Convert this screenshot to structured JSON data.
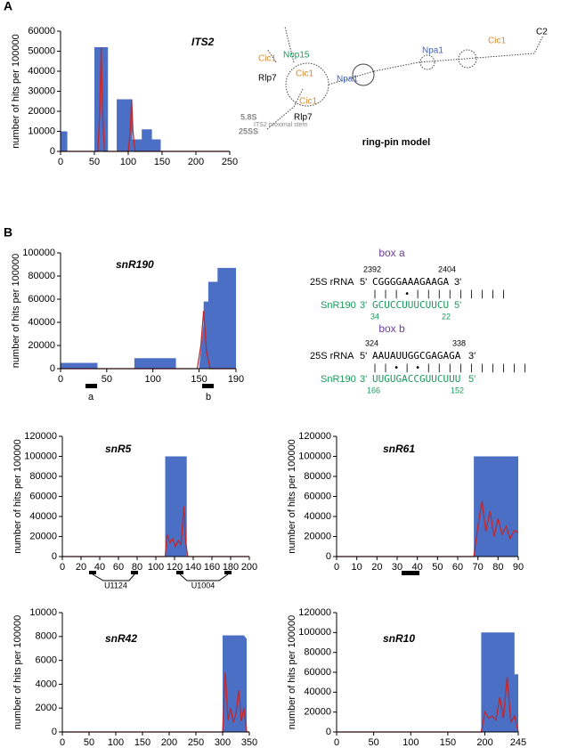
{
  "panels": [
    "A",
    "B"
  ],
  "annotations": [
    "a",
    "b",
    "U1124",
    "U1004"
  ],
  "diagram": {
    "labels": [
      "Nop15",
      "Cic1",
      "Cic1",
      "Npa1",
      "Npa1",
      "Cic1",
      "Rlp7",
      "Cic1",
      "Rlp7",
      "5.8S",
      "25SS",
      "ITS2 proximal stem",
      "C2"
    ],
    "caption": "ring-pin model"
  },
  "box_a": {
    "title": "box a",
    "top_name": "25S rRNA",
    "top_5": "5'",
    "top_seq": "CGGGGAAAGAAGA",
    "top_3": "3'",
    "top_start": "2392",
    "top_end": "2404",
    "pairs": "| | | • | | | | | | | | |",
    "bottom_name": "SnR190",
    "bottom_3": "3'",
    "bottom_seq": "GCUCCUUUCUUCU",
    "bottom_5": "5'",
    "bottom_start": "34",
    "bottom_end": "22"
  },
  "box_b": {
    "title": "box b",
    "top_name": "25S rRNA",
    "top_5": "5'",
    "top_seq": "AAUAUUGGCGAGAGA",
    "top_3": "3'",
    "top_start": "324",
    "top_end": "338",
    "pairs": "| | • | • | | | | | | | | | |",
    "bottom_name": "SnR190",
    "bottom_3": "3'",
    "bottom_seq": "UUGUGACCGUUCUUU",
    "bottom_5": "5'",
    "bottom_start": "166",
    "bottom_end": "152"
  },
  "chart_data": [
    {
      "type": "area",
      "title": "ITS2",
      "ylabel": "number of hits per 100000",
      "xlim": [
        0,
        250
      ],
      "xticks": [
        0,
        50,
        100,
        150,
        200,
        250
      ],
      "ylim": [
        0,
        60000
      ],
      "yticks": [
        0,
        10000,
        20000,
        30000,
        40000,
        50000,
        60000
      ],
      "series": [
        {
          "color": "#4a6fc4",
          "x": [
            0,
            0,
            10,
            10,
            50,
            50,
            70,
            70,
            83,
            83,
            106,
            106,
            120,
            120,
            135,
            135,
            148,
            148,
            250
          ],
          "values": [
            0,
            10000,
            10000,
            0,
            0,
            52000,
            52000,
            0,
            0,
            26000,
            26000,
            6000,
            6000,
            11000,
            11000,
            6000,
            6000,
            0,
            0
          ]
        },
        {
          "color": "#c0282d",
          "x": [
            0,
            55,
            58,
            60,
            62,
            65,
            100,
            103,
            105,
            107,
            110,
            250
          ],
          "values": [
            0,
            0,
            20000,
            52000,
            20000,
            0,
            0,
            10000,
            26000,
            10000,
            0,
            0
          ]
        }
      ]
    },
    {
      "type": "area",
      "title": "snR190",
      "ylabel": "number of hits per 100000",
      "xlim": [
        0,
        190
      ],
      "xticks": [
        0,
        50,
        100,
        150,
        190
      ],
      "ylim": [
        0,
        100000
      ],
      "yticks": [
        0,
        20000,
        40000,
        60000,
        80000,
        100000
      ],
      "series": [
        {
          "color": "#4a6fc4",
          "x": [
            0,
            0,
            40,
            40,
            80,
            80,
            125,
            125,
            150,
            155,
            155,
            160,
            160,
            170,
            170,
            190,
            190
          ],
          "values": [
            0,
            5000,
            5000,
            0,
            0,
            9000,
            9000,
            0,
            0,
            40000,
            58000,
            58000,
            75000,
            75000,
            87000,
            87000,
            0
          ]
        },
        {
          "color": "#c0282d",
          "x": [
            0,
            148,
            152,
            155,
            158,
            162,
            190
          ],
          "values": [
            0,
            0,
            20000,
            50000,
            15000,
            0,
            0
          ]
        }
      ]
    },
    {
      "type": "area",
      "title": "snR5",
      "ylabel": "number of hits per 100000",
      "xlim": [
        0,
        200
      ],
      "xticks": [
        0,
        20,
        40,
        60,
        80,
        100,
        120,
        140,
        160,
        180,
        200
      ],
      "ylim": [
        0,
        120000
      ],
      "yticks": [
        0,
        20000,
        40000,
        60000,
        80000,
        100000,
        120000
      ],
      "series": [
        {
          "color": "#4a6fc4",
          "x": [
            0,
            110,
            110,
            133,
            133,
            200
          ],
          "values": [
            0,
            0,
            100000,
            100000,
            0,
            0
          ]
        },
        {
          "color": "#c0282d",
          "x": [
            0,
            110,
            112,
            115,
            118,
            121,
            124,
            127,
            130,
            132,
            134,
            200
          ],
          "values": [
            0,
            0,
            22000,
            14000,
            18000,
            10000,
            16000,
            12000,
            50000,
            15000,
            0,
            0
          ]
        }
      ]
    },
    {
      "type": "area",
      "title": "snR61",
      "ylabel": "number of hits per 100000",
      "xlim": [
        0,
        90
      ],
      "xticks": [
        0,
        10,
        20,
        30,
        40,
        50,
        60,
        70,
        80,
        90
      ],
      "ylim": [
        0,
        120000
      ],
      "yticks": [
        0,
        20000,
        40000,
        60000,
        80000,
        100000,
        120000
      ],
      "series": [
        {
          "color": "#4a6fc4",
          "x": [
            0,
            68,
            68,
            90,
            90
          ],
          "values": [
            0,
            0,
            100000,
            100000,
            0
          ]
        },
        {
          "color": "#c0282d",
          "x": [
            0,
            68,
            70,
            72,
            74,
            76,
            78,
            80,
            82,
            84,
            86,
            88,
            90
          ],
          "values": [
            0,
            0,
            30000,
            55000,
            25000,
            45000,
            20000,
            38000,
            22000,
            30000,
            18000,
            26000,
            24000
          ]
        }
      ]
    },
    {
      "type": "area",
      "title": "snR42",
      "ylabel": "number of hits per 100000",
      "xlim": [
        0,
        350
      ],
      "xticks": [
        0,
        50,
        100,
        150,
        200,
        250,
        300,
        350
      ],
      "ylim": [
        0,
        10000
      ],
      "yticks": [
        0,
        2000,
        4000,
        6000,
        8000,
        10000
      ],
      "series": [
        {
          "color": "#4a6fc4",
          "x": [
            0,
            300,
            300,
            340,
            345,
            345,
            350
          ],
          "values": [
            0,
            0,
            8100,
            8100,
            7800,
            0,
            0
          ]
        },
        {
          "color": "#c0282d",
          "x": [
            0,
            300,
            305,
            310,
            315,
            320,
            325,
            330,
            335,
            340,
            345,
            350
          ],
          "values": [
            0,
            0,
            5000,
            1000,
            2000,
            800,
            1500,
            3500,
            900,
            2000,
            0,
            0
          ]
        }
      ]
    },
    {
      "type": "area",
      "title": "snR10",
      "ylabel": "number of hits per 100000",
      "xlim": [
        0,
        245
      ],
      "xticks": [
        0,
        50,
        100,
        150,
        200,
        245
      ],
      "ylim": [
        0,
        120000
      ],
      "yticks": [
        0,
        20000,
        40000,
        60000,
        80000,
        100000,
        120000
      ],
      "series": [
        {
          "color": "#4a6fc4",
          "x": [
            0,
            195,
            195,
            240,
            240,
            245,
            245
          ],
          "values": [
            0,
            0,
            100000,
            100000,
            58000,
            58000,
            0
          ]
        },
        {
          "color": "#c0282d",
          "x": [
            0,
            195,
            200,
            205,
            210,
            215,
            220,
            225,
            230,
            235,
            240,
            245
          ],
          "values": [
            0,
            0,
            20000,
            14000,
            16000,
            12000,
            35000,
            14000,
            55000,
            10000,
            16000,
            0
          ]
        }
      ]
    }
  ]
}
